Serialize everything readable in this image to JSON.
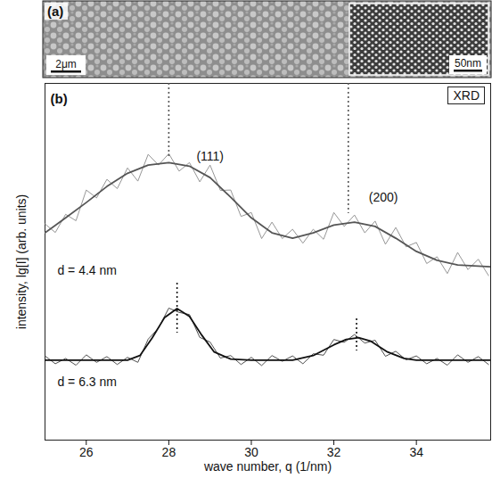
{
  "image_panel": {
    "label": "(a)",
    "scale_bar": "2μm",
    "inset_scale_bar": "50nm"
  },
  "chart_data": {
    "type": "line",
    "panel_label": "(b)",
    "title": "XRD",
    "x_label": "wave number, q (1/nm)",
    "y_label": "intensity, lg[I] (arb. units)",
    "xlim": [
      25,
      35.8
    ],
    "xticks": [
      26,
      28,
      30,
      32,
      34
    ],
    "ylim": [
      0,
      10
    ],
    "yticks": [],
    "tick_labels": "x",
    "grid": false,
    "x": [
      25,
      25.25,
      25.5,
      25.75,
      26,
      26.25,
      26.5,
      26.75,
      27,
      27.25,
      27.5,
      27.75,
      28,
      28.25,
      28.5,
      28.75,
      29,
      29.25,
      29.5,
      29.75,
      30,
      30.25,
      30.5,
      30.75,
      31,
      31.25,
      31.5,
      31.75,
      32,
      32.25,
      32.5,
      32.75,
      33,
      33.25,
      33.5,
      33.75,
      34,
      34.25,
      34.5,
      34.75,
      35,
      35.25,
      35.5,
      35.75
    ],
    "series": [
      {
        "name": "d = 4.4 nm",
        "color": "#8a8a8a",
        "values": [
          6.06,
          5.82,
          6.33,
          6.15,
          7.01,
          6.79,
          7.31,
          7.05,
          7.63,
          7.26,
          8.01,
          7.71,
          8.03,
          7.54,
          7.78,
          7.24,
          7.71,
          7.0,
          7.01,
          6.27,
          6.38,
          5.65,
          6.11,
          5.65,
          5.91,
          5.52,
          5.91,
          5.63,
          6.38,
          5.99,
          6.31,
          5.81,
          6.14,
          5.49,
          5.96,
          5.42,
          5.54,
          4.95,
          5.14,
          4.67,
          5.26,
          4.78,
          5.07,
          4.61
        ],
        "fit": {
          "color": "#555555",
          "x": [
            25,
            25.5,
            26,
            26.5,
            27,
            27.5,
            28,
            28.5,
            29,
            29.5,
            30,
            30.5,
            31,
            31.5,
            32,
            32.5,
            33,
            33.5,
            34,
            34.5,
            35,
            35.8
          ],
          "values": [
            5.81,
            6.23,
            6.66,
            7.11,
            7.48,
            7.71,
            7.78,
            7.68,
            7.36,
            6.81,
            6.23,
            5.81,
            5.66,
            5.81,
            6.03,
            6.11,
            5.99,
            5.66,
            5.29,
            5.04,
            4.91,
            4.86
          ]
        },
        "peak_lines": [
          {
            "x": 28.0,
            "y": [
              10,
              7.9
            ]
          },
          {
            "x": 32.35,
            "y": [
              10,
              6.35
            ]
          }
        ],
        "label_position": {
          "x": 25.3,
          "y": 4.74
        }
      },
      {
        "name": "d = 6.3 nm",
        "color": "#3a3a3a",
        "values": [
          2.36,
          2.14,
          2.29,
          2.1,
          2.39,
          2.18,
          2.34,
          2.12,
          2.32,
          2.18,
          2.83,
          3.14,
          3.7,
          3.58,
          3.52,
          2.88,
          2.75,
          2.3,
          2.37,
          2.12,
          2.32,
          2.09,
          2.37,
          2.21,
          2.36,
          2.14,
          2.42,
          2.38,
          2.82,
          2.74,
          2.96,
          2.72,
          2.8,
          2.35,
          2.49,
          2.25,
          2.36,
          2.14,
          2.29,
          2.1,
          2.39,
          2.18,
          2.34,
          2.12
        ],
        "fit": {
          "color": "#111111",
          "x": [
            25,
            26,
            27,
            27.3,
            27.6,
            27.9,
            28.2,
            28.5,
            28.8,
            29.1,
            29.5,
            30,
            31,
            31.5,
            32,
            32.3,
            32.6,
            32.9,
            33.3,
            33.7,
            34,
            35,
            35.8
          ],
          "values": [
            2.24,
            2.24,
            2.24,
            2.37,
            2.87,
            3.44,
            3.69,
            3.47,
            2.94,
            2.47,
            2.27,
            2.24,
            2.24,
            2.37,
            2.67,
            2.82,
            2.87,
            2.77,
            2.47,
            2.29,
            2.24,
            2.24,
            2.24
          ]
        },
        "peak_lines": [
          {
            "x": 28.2,
            "y": [
              4.4,
              3.0
            ]
          },
          {
            "x": 32.55,
            "y": [
              3.4,
              2.5
            ]
          }
        ],
        "label_position": {
          "x": 25.3,
          "y": 1.62
        }
      }
    ],
    "annotations": [
      {
        "text": "(111)",
        "x": 29.0,
        "y": 7.95
      },
      {
        "text": "(200)",
        "x": 33.2,
        "y": 6.8
      }
    ]
  }
}
